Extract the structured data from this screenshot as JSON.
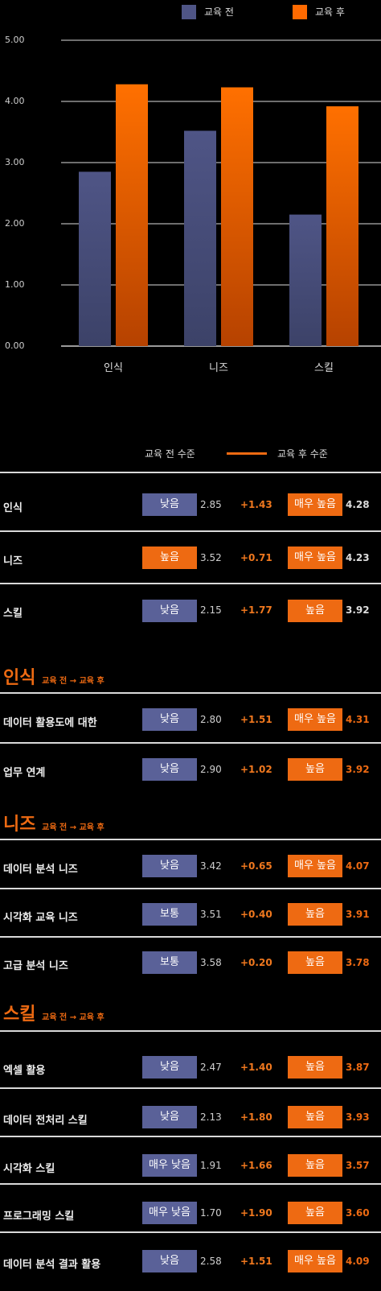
{
  "chart_data": {
    "type": "bar",
    "categories": [
      "인식",
      "니즈",
      "스킬"
    ],
    "series": [
      {
        "name": "교육 전",
        "values": [
          2.85,
          3.52,
          2.15
        ]
      },
      {
        "name": "교육 후",
        "values": [
          4.28,
          4.23,
          3.92
        ]
      }
    ],
    "ylim": [
      0,
      5
    ],
    "y_ticks": [
      "0.00",
      "1.00",
      "2.00",
      "3.00",
      "4.00",
      "5.00"
    ],
    "colors": {
      "before": "#4f5586",
      "after_top": "#ff7000",
      "after_bottom": "#b64200"
    },
    "grid": true,
    "legend_position": "top-right"
  },
  "legend2": {
    "before_label": "교육 전 수준",
    "after_label": "교육 후 수준"
  },
  "summary_rows": [
    {
      "label": "인식",
      "before_badge": "낮음",
      "before_value": "2.85",
      "delta": "+1.43",
      "after_badge": "매우 높음",
      "after_value": "4.28",
      "before_dim": true,
      "after_dim": true
    },
    {
      "label": "니즈",
      "before_badge": "높음",
      "before_value": "3.52",
      "delta": "+0.71",
      "after_badge": "매우 높음",
      "after_value": "4.23",
      "before_badge_orange": true,
      "after_dim": true
    },
    {
      "label": "스킬",
      "before_badge": "낮음",
      "before_value": "2.15",
      "delta": "+1.77",
      "after_badge": "높음",
      "after_value": "3.92",
      "after_dim": true
    }
  ],
  "sections": [
    {
      "title": "인식",
      "subtitle": "교육 전 → 교육 후",
      "rows": [
        {
          "label": "데이터 활용도에 대한",
          "before_badge": "낮음",
          "before_value": "2.80",
          "delta": "+1.51",
          "after_badge": "매우 높음",
          "after_value": "4.31"
        },
        {
          "label": "업무 연계",
          "before_badge": "낮음",
          "before_value": "2.90",
          "delta": "+1.02",
          "after_badge": "높음",
          "after_value": "3.92"
        }
      ]
    },
    {
      "title": "니즈",
      "subtitle": "교육 전 → 교육 후",
      "rows": [
        {
          "label": "데이터 분석 니즈",
          "before_badge": "낮음",
          "before_value": "3.42",
          "delta": "+0.65",
          "after_badge": "매우 높음",
          "after_value": "4.07"
        },
        {
          "label": "시각화 교육 니즈",
          "before_badge": "보통",
          "before_value": "3.51",
          "delta": "+0.40",
          "after_badge": "높음",
          "after_value": "3.91"
        },
        {
          "label": "고급 분석 니즈",
          "before_badge": "보통",
          "before_value": "3.58",
          "delta": "+0.20",
          "after_badge": "높음",
          "after_value": "3.78"
        }
      ]
    },
    {
      "title": "스킬",
      "subtitle": "교육 전 → 교육 후",
      "rows": [
        {
          "label": "엑셀 활용",
          "before_badge": "낮음",
          "before_value": "2.47",
          "delta": "+1.40",
          "after_badge": "높음",
          "after_value": "3.87"
        },
        {
          "label": "데이터 전처리 스킬",
          "before_badge": "낮음",
          "before_value": "2.13",
          "delta": "+1.80",
          "after_badge": "높음",
          "after_value": "3.93"
        },
        {
          "label": "시각화 스킬",
          "before_badge": "매우 낮음",
          "before_value": "1.91",
          "delta": "+1.66",
          "after_badge": "높음",
          "after_value": "3.57"
        },
        {
          "label": "프로그래밍 스킬",
          "before_badge": "매우 낮음",
          "before_value": "1.70",
          "delta": "+1.90",
          "after_badge": "높음",
          "after_value": "3.60"
        },
        {
          "label": "데이터 분석 결과 활용",
          "before_badge": "낮음",
          "before_value": "2.58",
          "delta": "+1.51",
          "after_badge": "매우 높음",
          "after_value": "4.09"
        }
      ]
    }
  ]
}
